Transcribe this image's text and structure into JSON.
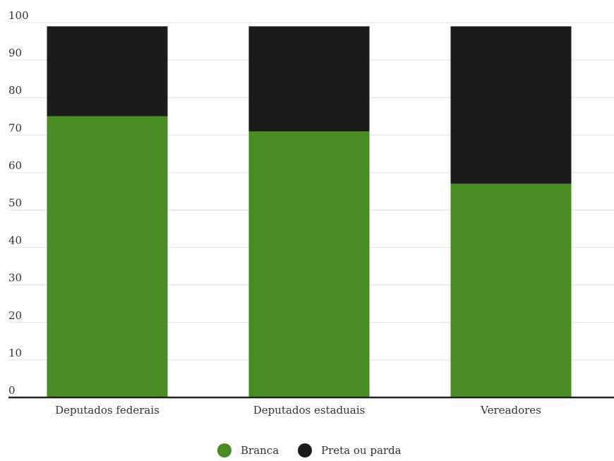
{
  "chart_data": {
    "type": "bar",
    "stacked": true,
    "categories": [
      "Deputados federais",
      "Deputados estaduais",
      "Vereadores"
    ],
    "series": [
      {
        "name": "Branca",
        "values": [
          75,
          71,
          57
        ],
        "color": "#4a8c24"
      },
      {
        "name": "Preta ou parda",
        "values": [
          24,
          28,
          42
        ],
        "color": "#1b1b1b"
      }
    ],
    "ylim": [
      0,
      100
    ],
    "yticks": [
      "0",
      "10",
      "20",
      "30",
      "40",
      "50",
      "60",
      "70",
      "80",
      "90",
      "100"
    ],
    "grid": true,
    "legend": "bottom-center"
  }
}
